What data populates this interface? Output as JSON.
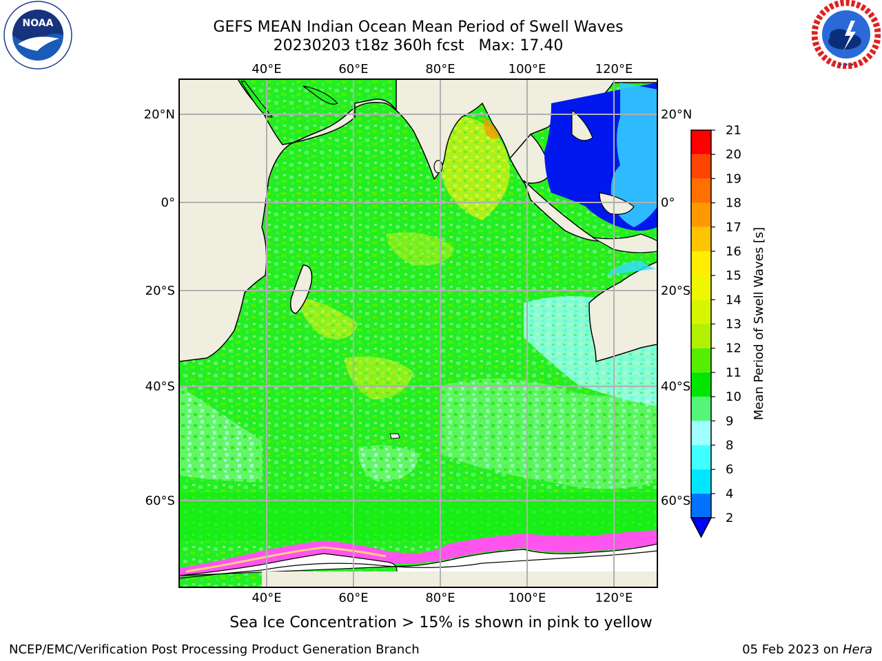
{
  "header": {
    "title_line1": "GEFS MEAN Indian Ocean Mean Period of Swell Waves",
    "title_line2": "20230203 t18z 360h fcst   Max: 17.40"
  },
  "logos": {
    "left": {
      "icon": "noaa-logo",
      "text": "NOAA",
      "ring_text": "NATIONAL OCEANIC AND ATMOSPHERIC ADMINISTRATION · U.S. DEPARTMENT OF COMMERCE"
    },
    "right": {
      "icon": "nws-logo",
      "ring_text": "NATIONAL WEATHER SERVICE"
    }
  },
  "map": {
    "lon_labels": [
      "40°E",
      "60°E",
      "80°E",
      "100°E",
      "120°E"
    ],
    "lat_labels": [
      "20°N",
      "0°",
      "20°S",
      "40°S",
      "60°S"
    ],
    "colors": {
      "land": "#efeedf",
      "ocean_green": "#22ee22",
      "ocean_light_green": "#55f055",
      "yellowish": "#ccff33",
      "cyan": "#66ffff",
      "deep_blue": "#0018ee",
      "ice_pink": "#ff55ee",
      "grid": "#b0b0b0"
    }
  },
  "colorbar": {
    "label": "Mean Period of Swell Waves [s]",
    "ticks": [
      "2",
      "4",
      "6",
      "8",
      "9",
      "10",
      "11",
      "12",
      "13",
      "14",
      "15",
      "16",
      "17",
      "18",
      "19",
      "20",
      "21"
    ],
    "colors": [
      "#0072ff",
      "#00e6ff",
      "#40ffff",
      "#a0ffff",
      "#55f57a",
      "#00e600",
      "#55ee00",
      "#b0f000",
      "#d8f500",
      "#f0f500",
      "#ffee00",
      "#ffc400",
      "#ff9900",
      "#ff7000",
      "#ff4400",
      "#ff0000"
    ],
    "under_color": "#0000ff"
  },
  "footer": {
    "caption": "Sea Ice Concentration > 15% is shown in pink to yellow",
    "left": "NCEP/EMC/Verification Post Processing Product Generation Branch",
    "right_date": "05 Feb 2023 on ",
    "right_host": "Hera"
  }
}
